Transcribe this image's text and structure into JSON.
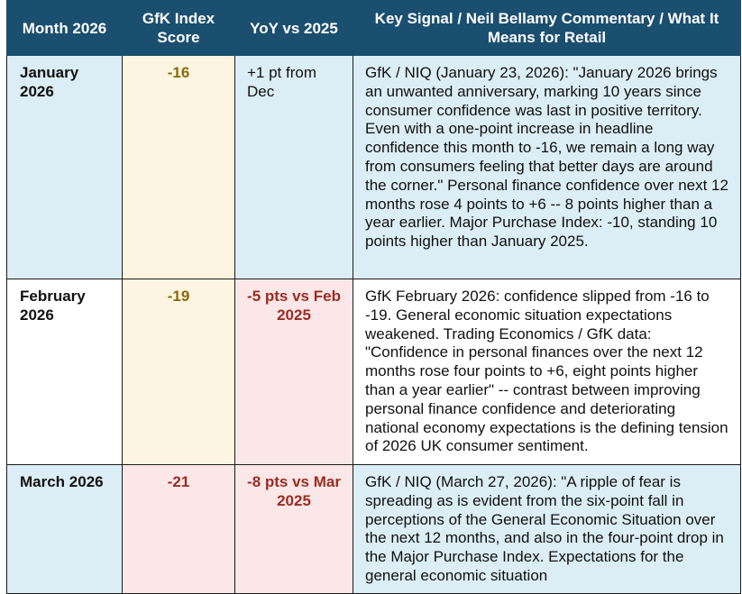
{
  "table": {
    "headers": [
      "Month 2026",
      "GfK Index Score",
      "YoY vs 2025",
      "Key Signal / Neil Bellamy Commentary / What It Means for Retail"
    ],
    "rows": [
      {
        "month": "January 2026",
        "score": "-16",
        "yoy": "+1 pt from Dec",
        "comment": "GfK / NIQ (January 23, 2026): \"January 2026 brings an unwanted anniversary, marking 10 years since consumer confidence was last in positive territory. Even with a one-point increase in headline confidence this month to -16, we remain a long way from consumers feeling that better days are around the corner.\" Personal finance confidence over next 12 months rose 4 points to +6 -- 8 points higher than a year earlier. Major Purchase Index: -10, standing 10 points higher than January 2025."
      },
      {
        "month": "February 2026",
        "score": "-19",
        "yoy": "-5 pts vs Feb 2025",
        "comment": "GfK February 2026: confidence slipped from -16 to -19. General economic situation expectations weakened. Trading Economics / GfK data: \"Confidence in personal finances over the next 12 months rose four points to +6, eight points higher than a year earlier\" -- contrast between improving personal finance confidence and deteriorating national economy expectations is the defining tension of 2026 UK consumer sentiment."
      },
      {
        "month": "March 2026",
        "score": "-21",
        "yoy": "-8 pts vs Mar 2025",
        "comment": "GfK / NIQ (March 27, 2026): \"A ripple of fear is spreading as is evident from the six-point fall in perceptions of the General Economic Situation over the next 12 months, and also in the four-point drop in the Major Purchase Index. Expectations for the general economic situation"
      }
    ]
  }
}
